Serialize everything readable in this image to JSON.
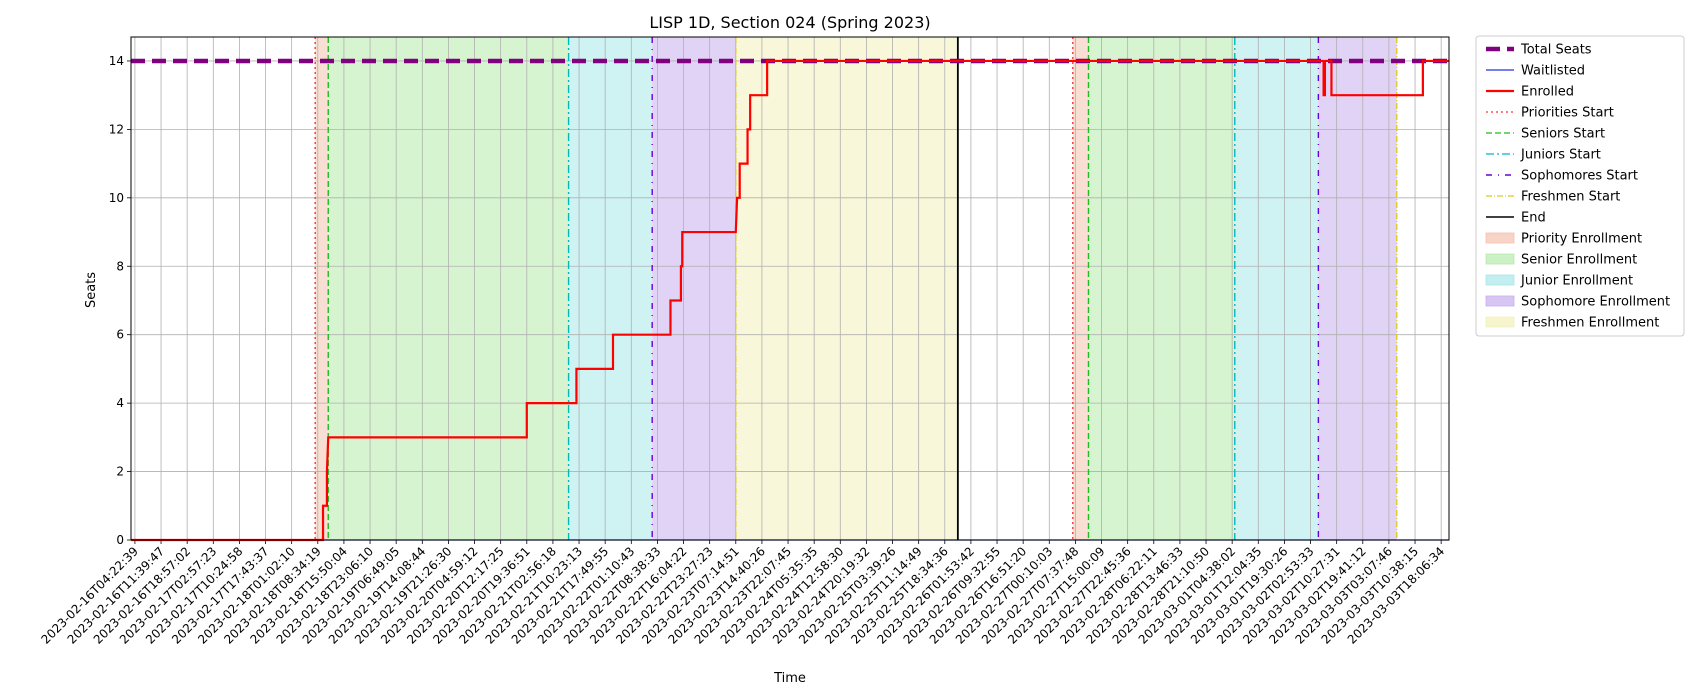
{
  "chart_data": {
    "type": "line",
    "title": "LISP 1D, Section 024 (Spring 2023)",
    "xlabel": "Time",
    "ylabel": "Seats",
    "ylim": [
      0,
      14.7
    ],
    "yticks": [
      0,
      2,
      4,
      6,
      8,
      10,
      12,
      14
    ],
    "grid": true,
    "legend_position": "outside-right",
    "x_tick_labels": [
      "2023-02-16T04:22:39",
      "2023-02-16T11:39:47",
      "2023-02-16T18:57:02",
      "2023-02-17T02:57:23",
      "2023-02-17T10:24:58",
      "2023-02-17T17:43:37",
      "2023-02-18T01:02:10",
      "2023-02-18T08:34:19",
      "2023-02-18T15:50:04",
      "2023-02-18T23:06:10",
      "2023-02-19T06:49:05",
      "2023-02-19T14:08:44",
      "2023-02-19T21:26:30",
      "2023-02-20T04:59:12",
      "2023-02-20T12:17:25",
      "2023-02-20T19:36:51",
      "2023-02-21T02:56:18",
      "2023-02-21T10:23:13",
      "2023-02-21T17:49:55",
      "2023-02-22T01:10:43",
      "2023-02-22T08:38:33",
      "2023-02-22T16:04:22",
      "2023-02-22T23:27:23",
      "2023-02-23T07:14:51",
      "2023-02-23T14:40:26",
      "2023-02-23T22:07:45",
      "2023-02-24T05:35:35",
      "2023-02-24T12:58:30",
      "2023-02-24T20:19:32",
      "2023-02-25T03:39:26",
      "2023-02-25T11:14:49",
      "2023-02-25T18:34:36",
      "2023-02-26T01:53:42",
      "2023-02-26T09:32:55",
      "2023-02-26T16:51:20",
      "2023-02-27T00:10:03",
      "2023-02-27T07:37:48",
      "2023-02-27T15:00:09",
      "2023-02-27T22:45:36",
      "2023-02-28T06:22:11",
      "2023-02-28T13:46:33",
      "2023-02-28T21:10:50",
      "2023-03-01T04:38:02",
      "2023-03-01T12:04:35",
      "2023-03-01T19:30:26",
      "2023-03-02T02:53:33",
      "2023-03-02T10:27:31",
      "2023-03-02T19:41:12",
      "2023-03-03T03:07:46",
      "2023-03-03T10:38:15",
      "2023-03-03T18:06:34"
    ],
    "x_unit": "tick index",
    "xlim": [
      -0.15,
      50.3
    ],
    "phases": [
      {
        "name": "Priority Enrollment",
        "color": "#f4c2ae",
        "ranges": [
          [
            6.9,
            7.4
          ],
          [
            35.9,
            36.5
          ]
        ]
      },
      {
        "name": "Senior Enrollment",
        "color": "#b6ebab",
        "ranges": [
          [
            7.4,
            16.6
          ],
          [
            36.5,
            42.1
          ]
        ]
      },
      {
        "name": "Junior Enrollment",
        "color": "#a8e7ea",
        "ranges": [
          [
            16.6,
            19.8
          ],
          [
            42.1,
            45.3
          ]
        ]
      },
      {
        "name": "Sophomore Enrollment",
        "color": "#c8aeec",
        "ranges": [
          [
            19.8,
            23.0
          ],
          [
            45.3,
            48.3
          ]
        ]
      },
      {
        "name": "Freshmen Enrollment",
        "color": "#f2f1b9",
        "ranges": [
          [
            23.0,
            31.5
          ]
        ]
      }
    ],
    "markers": [
      {
        "name": "Priorities Start",
        "color": "#ff3333",
        "dash": "2,3",
        "x": [
          6.9,
          35.9
        ]
      },
      {
        "name": "Seniors Start",
        "color": "#22bb22",
        "dash": "6,3",
        "x": [
          7.4,
          36.5
        ]
      },
      {
        "name": "Juniors Start",
        "color": "#00bbbb",
        "dash": "8,3,2,3",
        "x": [
          16.6,
          42.1
        ]
      },
      {
        "name": "Sophomores Start",
        "color": "#6600dd",
        "dash": "6,6,1,6",
        "x": [
          19.8,
          45.3
        ]
      },
      {
        "name": "Freshmen Start",
        "color": "#ddcc22",
        "dash": "6,2,1,2",
        "x": [
          23.0,
          48.3
        ]
      },
      {
        "name": "End",
        "color": "#000000",
        "dash": "",
        "x": [
          31.5
        ]
      }
    ],
    "series": [
      {
        "name": "Total Seats",
        "color": "#800080",
        "width": 4.5,
        "dash": "14,7",
        "points": [
          [
            -0.15,
            14
          ],
          [
            50.3,
            14
          ]
        ]
      },
      {
        "name": "Waitlisted",
        "color": "#2030e0",
        "width": 1.2,
        "dash": "",
        "points": [
          [
            -0.15,
            0
          ],
          [
            50.3,
            0
          ]
        ]
      },
      {
        "name": "Enrolled",
        "color": "#ff0000",
        "width": 2.2,
        "dash": "",
        "points": [
          [
            -0.15,
            0
          ],
          [
            7.2,
            0
          ],
          [
            7.2,
            1
          ],
          [
            7.35,
            1
          ],
          [
            7.35,
            2
          ],
          [
            7.4,
            3
          ],
          [
            15.0,
            3
          ],
          [
            15.0,
            4
          ],
          [
            16.9,
            4
          ],
          [
            16.9,
            5
          ],
          [
            18.3,
            5
          ],
          [
            18.3,
            6
          ],
          [
            20.5,
            6
          ],
          [
            20.5,
            7
          ],
          [
            20.9,
            7
          ],
          [
            20.9,
            8
          ],
          [
            20.95,
            8
          ],
          [
            20.95,
            9
          ],
          [
            23.0,
            9
          ],
          [
            23.05,
            10
          ],
          [
            23.15,
            10
          ],
          [
            23.15,
            11
          ],
          [
            23.45,
            11
          ],
          [
            23.45,
            12
          ],
          [
            23.55,
            12
          ],
          [
            23.55,
            13
          ],
          [
            24.2,
            13
          ],
          [
            24.2,
            14
          ],
          [
            45.5,
            14
          ],
          [
            45.5,
            13
          ],
          [
            45.55,
            13
          ],
          [
            45.55,
            14
          ],
          [
            45.8,
            14
          ],
          [
            45.8,
            13
          ],
          [
            49.3,
            13
          ],
          [
            49.3,
            14
          ],
          [
            50.3,
            14
          ]
        ]
      }
    ],
    "legend": [
      {
        "label": "Total Seats",
        "kind": "line",
        "color": "#800080",
        "dash": "14,7",
        "width": 4.5
      },
      {
        "label": "Waitlisted",
        "kind": "line",
        "color": "#2030e0",
        "dash": "",
        "width": 1.2
      },
      {
        "label": "Enrolled",
        "kind": "line",
        "color": "#ff0000",
        "dash": "",
        "width": 2.2
      },
      {
        "label": "Priorities Start",
        "kind": "line",
        "color": "#ff3333",
        "dash": "2,3",
        "width": 1.3
      },
      {
        "label": "Seniors Start",
        "kind": "line",
        "color": "#22bb22",
        "dash": "6,3",
        "width": 1.3
      },
      {
        "label": "Juniors Start",
        "kind": "line",
        "color": "#00bbbb",
        "dash": "8,3,2,3",
        "width": 1.3
      },
      {
        "label": "Sophomores Start",
        "kind": "line",
        "color": "#6600dd",
        "dash": "6,6,1,6",
        "width": 1.6
      },
      {
        "label": "Freshmen Start",
        "kind": "line",
        "color": "#ddcc22",
        "dash": "6,2,1,2",
        "width": 1.3
      },
      {
        "label": "End",
        "kind": "line",
        "color": "#000000",
        "dash": "",
        "width": 1.6
      },
      {
        "label": "Priority Enrollment",
        "kind": "patch",
        "color": "#f4c2ae"
      },
      {
        "label": "Senior Enrollment",
        "kind": "patch",
        "color": "#b6ebab"
      },
      {
        "label": "Junior Enrollment",
        "kind": "patch",
        "color": "#a8e7ea"
      },
      {
        "label": "Sophomore Enrollment",
        "kind": "patch",
        "color": "#c8aeec"
      },
      {
        "label": "Freshmen Enrollment",
        "kind": "patch",
        "color": "#f2f1b9"
      }
    ]
  }
}
